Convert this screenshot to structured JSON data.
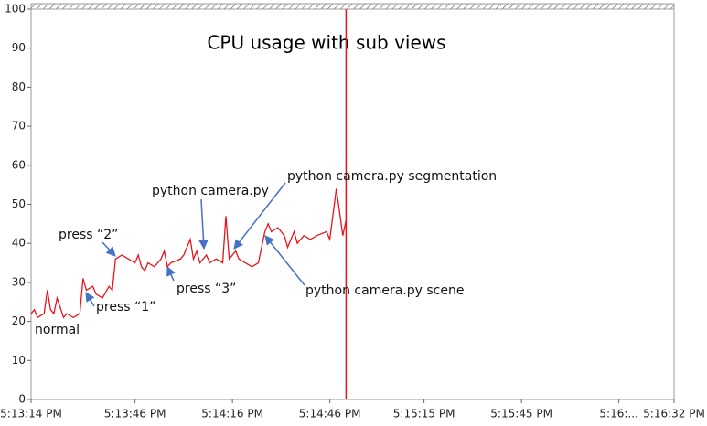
{
  "chart_data": {
    "type": "line",
    "title": "CPU usage with sub views",
    "annotations": [
      "normal",
      "press “1”",
      "press “2”",
      "press “3”",
      "python camera.py",
      "python camera.py segmentation",
      "python camera.py scene"
    ],
    "x": [
      "5:13:14 PM",
      "5:13:15 PM",
      "5:13:16 PM",
      "5:13:18 PM",
      "5:13:19 PM",
      "5:13:20 PM",
      "5:13:21 PM",
      "5:13:22 PM",
      "5:13:24 PM",
      "5:13:25 PM",
      "5:13:27 PM",
      "5:13:29 PM",
      "5:13:30 PM",
      "5:13:31 PM",
      "5:13:33 PM",
      "5:13:34 PM",
      "5:13:36 PM",
      "5:13:38 PM",
      "5:13:39 PM",
      "5:13:40 PM",
      "5:13:42 PM",
      "5:13:44 PM",
      "5:13:46 PM",
      "5:13:47 PM",
      "5:13:48 PM",
      "5:13:49 PM",
      "5:13:50 PM",
      "5:13:52 PM",
      "5:13:54 PM",
      "5:13:55 PM",
      "5:13:56 PM",
      "5:13:57 PM",
      "5:14:00 PM",
      "5:14:01 PM",
      "5:14:03 PM",
      "5:14:04 PM",
      "5:14:05 PM",
      "5:14:06 PM",
      "5:14:08 PM",
      "5:14:09 PM",
      "5:14:11 PM",
      "5:14:13 PM",
      "5:14:14 PM",
      "5:14:15 PM",
      "5:14:17 PM",
      "5:14:18 PM",
      "5:14:20 PM",
      "5:14:22 PM",
      "5:14:24 PM",
      "5:14:26 PM",
      "5:14:27 PM",
      "5:14:28 PM",
      "5:14:30 PM",
      "5:14:32 PM",
      "5:14:33 PM",
      "5:14:35 PM",
      "5:14:36 PM",
      "5:14:38 PM",
      "5:14:40 PM",
      "5:14:42 PM",
      "5:14:45 PM",
      "5:14:46 PM",
      "5:14:48 PM",
      "5:14:49 PM",
      "5:14:50 PM",
      "5:14:51 PM"
    ],
    "series": [
      {
        "color": "#e8141c",
        "values": [
          22,
          23,
          21,
          22,
          28,
          23,
          22,
          26,
          21,
          22,
          21,
          22,
          31,
          28,
          29,
          27,
          26,
          29,
          28,
          36,
          37,
          36,
          35,
          37,
          34,
          33,
          35,
          34,
          36,
          38,
          34,
          35,
          36,
          37,
          41,
          36,
          38,
          35,
          37,
          35,
          36,
          35,
          47,
          36,
          38,
          36,
          35,
          34,
          35,
          43,
          45,
          43,
          44,
          42,
          39,
          43,
          40,
          42,
          41,
          42,
          43,
          41,
          54,
          48,
          42,
          46
        ]
      }
    ],
    "cursor": "5:14:51 PM",
    "cursor_color": "#e8141c",
    "xlim": [
      "5:13:14 PM",
      "5:16:32 PM"
    ],
    "xticks": [
      "5:13:14 PM",
      "5:13:46 PM",
      "5:14:16 PM",
      "5:14:46 PM",
      "5:15:15 PM",
      "5:15:45 PM",
      {
        "value": "5:16:15 PM",
        "label": "5:16:..."
      },
      "5:16:32 PM"
    ],
    "ylim": [
      0,
      100
    ],
    "yticks": [
      0,
      10,
      20,
      30,
      40,
      50,
      60,
      70,
      80,
      90,
      100
    ],
    "grid": false
  }
}
